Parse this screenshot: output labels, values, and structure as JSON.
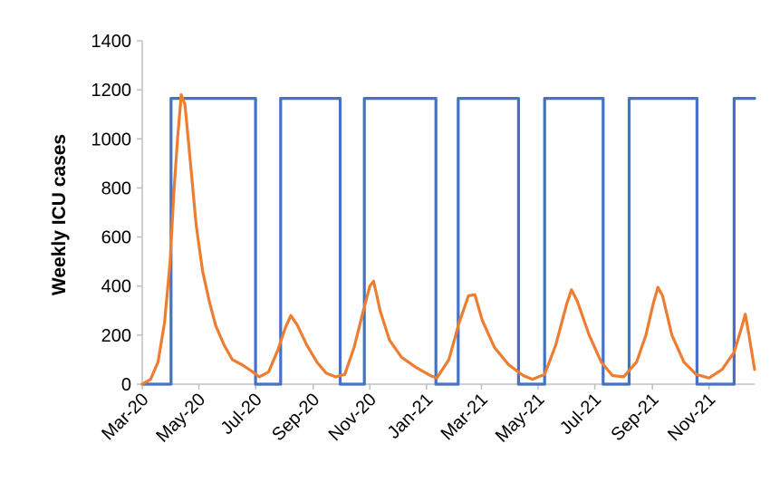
{
  "chart_data": {
    "type": "line",
    "title": "",
    "xlabel": "",
    "ylabel": "Weekly ICU cases",
    "ylim": [
      0,
      1400
    ],
    "yticks": [
      0,
      200,
      400,
      600,
      800,
      1000,
      1200,
      1400
    ],
    "xlim": [
      "2020-03-01",
      "2021-12-20"
    ],
    "xticks": [
      {
        "date": "2020-03-01",
        "label": "Mar-20"
      },
      {
        "date": "2020-05-01",
        "label": "May-20"
      },
      {
        "date": "2020-07-01",
        "label": "Jul-20"
      },
      {
        "date": "2020-09-01",
        "label": "Sep-20"
      },
      {
        "date": "2020-11-01",
        "label": "Nov-20"
      },
      {
        "date": "2021-01-01",
        "label": "Jan-21"
      },
      {
        "date": "2021-03-01",
        "label": "Mar-21"
      },
      {
        "date": "2021-05-01",
        "label": "May-21"
      },
      {
        "date": "2021-07-01",
        "label": "Jul-21"
      },
      {
        "date": "2021-09-01",
        "label": "Sep-21"
      },
      {
        "date": "2021-11-01",
        "label": "Nov-21"
      }
    ],
    "grid": false,
    "legend": false,
    "series": [
      {
        "color": "#4472c4",
        "style": "step",
        "points": [
          [
            "2020-03-01",
            0
          ],
          [
            "2020-04-01",
            0
          ],
          [
            "2020-04-01",
            1165
          ],
          [
            "2020-07-01",
            1165
          ],
          [
            "2020-07-01",
            0
          ],
          [
            "2020-07-28",
            0
          ],
          [
            "2020-07-28",
            1165
          ],
          [
            "2020-09-30",
            1165
          ],
          [
            "2020-09-30",
            0
          ],
          [
            "2020-10-26",
            0
          ],
          [
            "2020-10-26",
            1165
          ],
          [
            "2021-01-11",
            1165
          ],
          [
            "2021-01-11",
            0
          ],
          [
            "2021-02-04",
            0
          ],
          [
            "2021-02-04",
            1165
          ],
          [
            "2021-04-10",
            1165
          ],
          [
            "2021-04-10",
            0
          ],
          [
            "2021-05-08",
            0
          ],
          [
            "2021-05-08",
            1165
          ],
          [
            "2021-07-10",
            1165
          ],
          [
            "2021-07-10",
            0
          ],
          [
            "2021-08-07",
            0
          ],
          [
            "2021-08-07",
            1165
          ],
          [
            "2021-10-19",
            1165
          ],
          [
            "2021-10-19",
            0
          ],
          [
            "2021-11-28",
            0
          ],
          [
            "2021-11-28",
            1165
          ],
          [
            "2021-12-20",
            1165
          ]
        ]
      },
      {
        "color": "#ed7d31",
        "style": "line",
        "points": [
          [
            "2020-03-01",
            0
          ],
          [
            "2020-03-10",
            20
          ],
          [
            "2020-03-18",
            90
          ],
          [
            "2020-03-25",
            250
          ],
          [
            "2020-03-31",
            500
          ],
          [
            "2020-04-04",
            780
          ],
          [
            "2020-04-08",
            1000
          ],
          [
            "2020-04-12",
            1180
          ],
          [
            "2020-04-16",
            1140
          ],
          [
            "2020-04-22",
            900
          ],
          [
            "2020-04-28",
            650
          ],
          [
            "2020-05-05",
            460
          ],
          [
            "2020-05-12",
            340
          ],
          [
            "2020-05-19",
            240
          ],
          [
            "2020-05-28",
            160
          ],
          [
            "2020-06-06",
            100
          ],
          [
            "2020-06-16",
            80
          ],
          [
            "2020-06-26",
            55
          ],
          [
            "2020-07-05",
            30
          ],
          [
            "2020-07-15",
            50
          ],
          [
            "2020-07-25",
            140
          ],
          [
            "2020-08-02",
            230
          ],
          [
            "2020-08-08",
            280
          ],
          [
            "2020-08-15",
            240
          ],
          [
            "2020-08-25",
            160
          ],
          [
            "2020-09-05",
            90
          ],
          [
            "2020-09-15",
            45
          ],
          [
            "2020-09-25",
            30
          ],
          [
            "2020-10-05",
            40
          ],
          [
            "2020-10-15",
            150
          ],
          [
            "2020-10-25",
            300
          ],
          [
            "2020-11-01",
            400
          ],
          [
            "2020-11-05",
            420
          ],
          [
            "2020-11-12",
            300
          ],
          [
            "2020-11-22",
            180
          ],
          [
            "2020-12-05",
            110
          ],
          [
            "2020-12-20",
            70
          ],
          [
            "2021-01-05",
            35
          ],
          [
            "2021-01-12",
            25
          ],
          [
            "2021-01-25",
            100
          ],
          [
            "2021-02-05",
            250
          ],
          [
            "2021-02-15",
            360
          ],
          [
            "2021-02-22",
            365
          ],
          [
            "2021-03-02",
            260
          ],
          [
            "2021-03-15",
            150
          ],
          [
            "2021-03-30",
            80
          ],
          [
            "2021-04-15",
            35
          ],
          [
            "2021-04-25",
            20
          ],
          [
            "2021-05-08",
            40
          ],
          [
            "2021-05-20",
            160
          ],
          [
            "2021-06-01",
            330
          ],
          [
            "2021-06-06",
            385
          ],
          [
            "2021-06-12",
            340
          ],
          [
            "2021-06-25",
            200
          ],
          [
            "2021-07-08",
            90
          ],
          [
            "2021-07-20",
            35
          ],
          [
            "2021-08-01",
            30
          ],
          [
            "2021-08-15",
            90
          ],
          [
            "2021-08-25",
            200
          ],
          [
            "2021-09-02",
            330
          ],
          [
            "2021-09-07",
            395
          ],
          [
            "2021-09-12",
            360
          ],
          [
            "2021-09-22",
            200
          ],
          [
            "2021-10-05",
            90
          ],
          [
            "2021-10-18",
            40
          ],
          [
            "2021-11-01",
            25
          ],
          [
            "2021-11-15",
            60
          ],
          [
            "2021-11-28",
            130
          ],
          [
            "2021-12-06",
            230
          ],
          [
            "2021-12-10",
            285
          ],
          [
            "2021-12-14",
            200
          ],
          [
            "2021-12-20",
            60
          ]
        ]
      }
    ]
  }
}
